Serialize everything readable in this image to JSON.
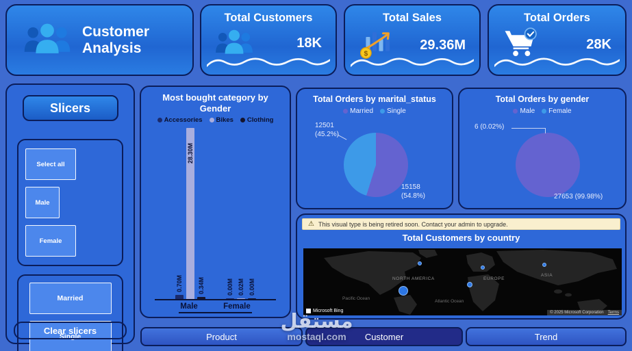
{
  "header": {
    "title": "Customer Analysis",
    "kpis": [
      {
        "label": "Total Customers",
        "value": "18K",
        "icon": "people-icon"
      },
      {
        "label": "Total Sales",
        "value": "29.36M",
        "icon": "sales-chart-icon"
      },
      {
        "label": "Total Orders",
        "value": "28K",
        "icon": "cart-check-icon"
      }
    ]
  },
  "slicers": {
    "title": "Slicers",
    "gender": [
      "Select all",
      "Male",
      "Female"
    ],
    "marital": [
      "Married",
      "Single"
    ],
    "clear": "Clear slicers"
  },
  "chart_data": [
    {
      "type": "bar",
      "title": "Most bought category by Gender",
      "categories": [
        "Male",
        "Female"
      ],
      "ylim": [
        0,
        28.3
      ],
      "unit": "M",
      "series": [
        {
          "name": "Accessories",
          "color": "#1b2a6b",
          "values": [
            0.7,
            0.0
          ],
          "labels": [
            "0.70M",
            "0.00M"
          ]
        },
        {
          "name": "Bikes",
          "color": "#a9aede",
          "values": [
            28.3,
            0.02
          ],
          "labels": [
            "28.30M",
            "0.02M"
          ]
        },
        {
          "name": "Clothing",
          "color": "#15152e",
          "values": [
            0.34,
            0.0
          ],
          "labels": [
            "0.34M",
            "0.00M"
          ]
        }
      ]
    },
    {
      "type": "pie",
      "title": "Total Orders by marital_status",
      "legend_position": "top",
      "slices": [
        {
          "label": "Married",
          "value": 15158,
          "pct": 54.8,
          "color": "#6463d0",
          "callout": "15158 (54.8%)"
        },
        {
          "label": "Single",
          "value": 12501,
          "pct": 45.2,
          "color": "#3d9ae8",
          "callout": "12501 (45.2%)"
        }
      ]
    },
    {
      "type": "pie",
      "title": "Total Orders by gender",
      "legend_position": "top",
      "slices": [
        {
          "label": "Male",
          "value": 27653,
          "pct": 99.98,
          "color": "#6463d0",
          "callout": "27653 (99.98%)"
        },
        {
          "label": "Female",
          "value": 6,
          "pct": 0.02,
          "color": "#3d9ae8",
          "callout": "6 (0.02%)"
        }
      ]
    }
  ],
  "map": {
    "warning_icon": "⚠",
    "warning": "This visual type is being retired soon. Contact your admin to upgrade.",
    "title": "Total Customers by country",
    "regions": {
      "north_america": "NORTH AMERICA",
      "europe": "EUROPE",
      "asia": "ASIA",
      "pacific": "Pacific Ocean",
      "atlantic": "Atlantic Ocean"
    },
    "bing": "Microsoft Bing",
    "attribution": "© 2025 Microsoft Corporation",
    "terms": "Terms"
  },
  "nav": {
    "tabs": [
      {
        "label": "Product",
        "active": false
      },
      {
        "label": "Customer",
        "active": true
      },
      {
        "label": "Trend",
        "active": false
      }
    ]
  },
  "watermark": {
    "name": "مستقل",
    "site": "mostaql.com"
  },
  "colors": {
    "page_bg": "#3e6bd0",
    "panel_border": "#0b1d5a",
    "accent_purple": "#6463d0",
    "accent_blue": "#3d9ae8",
    "selected_tab_bg": "#222b88",
    "warning_bg": "#f9efce"
  }
}
